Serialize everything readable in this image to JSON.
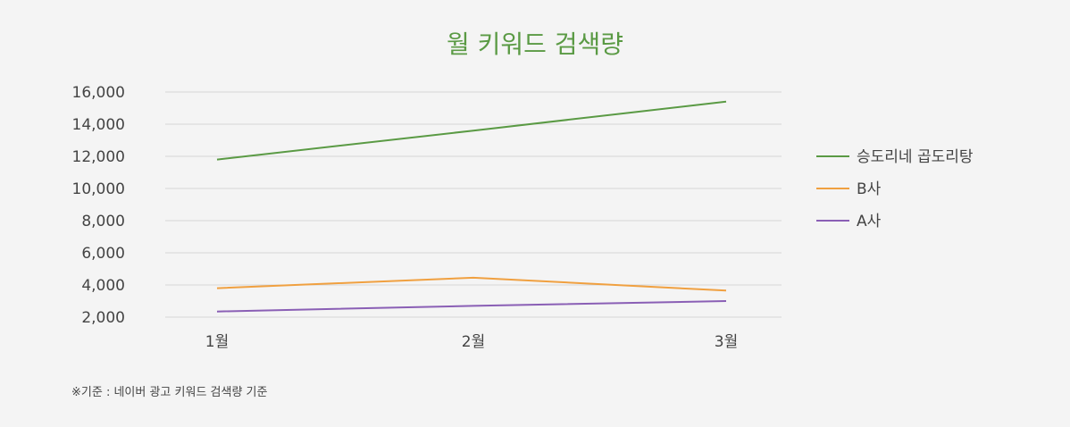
{
  "chart_data": {
    "type": "line",
    "title": "월 키워드 검색량",
    "categories": [
      "1월",
      "2월",
      "3월"
    ],
    "ylim": [
      2000,
      16000
    ],
    "yticks": [
      2000,
      4000,
      6000,
      8000,
      10000,
      12000,
      14000,
      16000
    ],
    "ytick_labels": [
      "2,000",
      "4,000",
      "6,000",
      "8,000",
      "10,000",
      "12,000",
      "14,000",
      "16,000"
    ],
    "grid": true,
    "legend_position": "right",
    "series": [
      {
        "name": "승도리네 곱도리탕",
        "color": "#5a9a44",
        "values": [
          11800,
          13600,
          15400
        ]
      },
      {
        "name": "B사",
        "color": "#f0a040",
        "values": [
          3800,
          4450,
          3650
        ]
      },
      {
        "name": "A사",
        "color": "#8a5fb5",
        "values": [
          2350,
          2700,
          3000
        ]
      }
    ]
  },
  "footnote": "※기준 : 네이버 광고 키워드 검색량 기준"
}
